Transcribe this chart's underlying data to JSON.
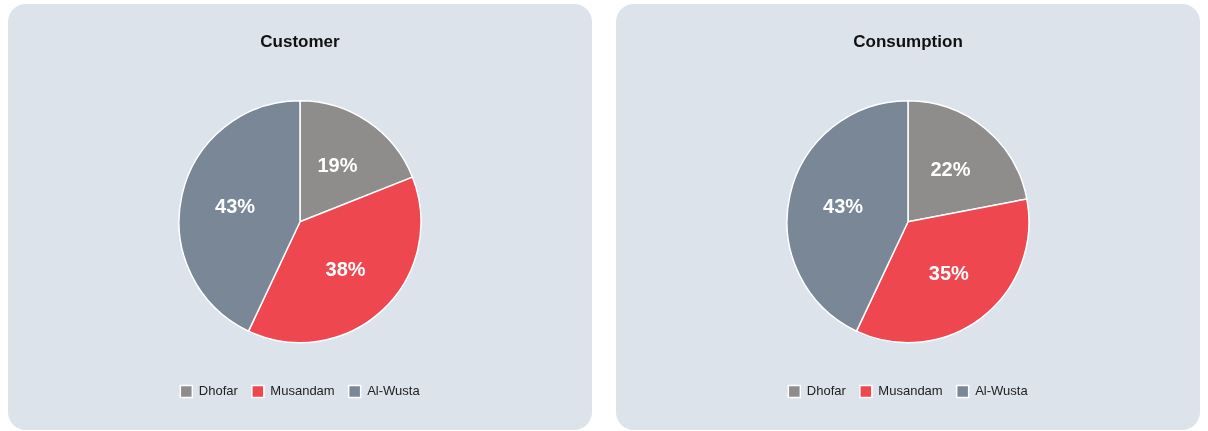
{
  "chart_data": [
    {
      "type": "pie",
      "title": "Customer",
      "categories": [
        "Dhofar",
        "Musandam",
        "Al-Wusta"
      ],
      "values": [
        19,
        38,
        43
      ],
      "colors": [
        "#8f8c8c",
        "#ef4750",
        "#798797"
      ],
      "value_labels": [
        "19%",
        "38%",
        "43%"
      ],
      "legend": "bottom"
    },
    {
      "type": "pie",
      "title": "Consumption",
      "categories": [
        "Dhofar",
        "Musandam",
        "Al-Wusta"
      ],
      "values": [
        22,
        35,
        43
      ],
      "colors": [
        "#8f8c8c",
        "#ef4750",
        "#798797"
      ],
      "value_labels": [
        "22%",
        "35%",
        "43%"
      ],
      "legend": "bottom"
    }
  ]
}
